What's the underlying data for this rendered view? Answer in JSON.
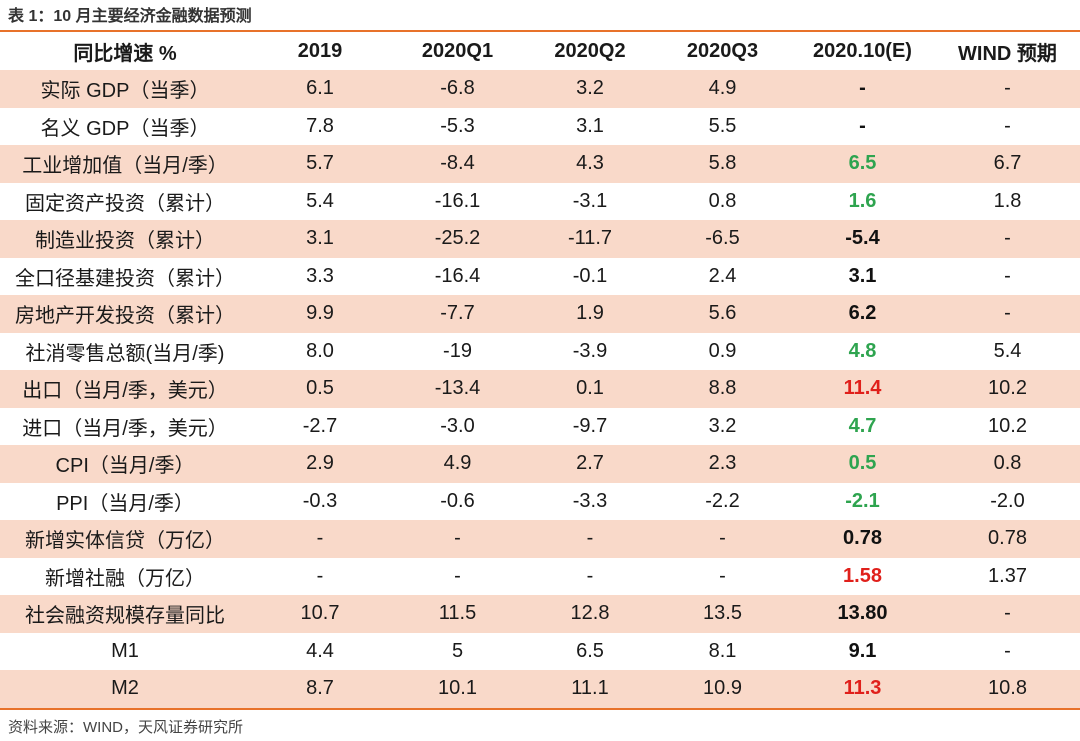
{
  "caption": "表 1：10 月主要经济金融数据预测",
  "headers": [
    "同比增速 %",
    "2019",
    "2020Q1",
    "2020Q2",
    "2020Q3",
    "2020.10(E)",
    "WIND 预期"
  ],
  "rows": [
    {
      "label": "实际 GDP（当季）",
      "values": [
        "6.1",
        "-6.8",
        "3.2",
        "4.9"
      ],
      "estimate": "-",
      "estimate_color": "black",
      "wind": "-"
    },
    {
      "label": "名义 GDP（当季）",
      "values": [
        "7.8",
        "-5.3",
        "3.1",
        "5.5"
      ],
      "estimate": "-",
      "estimate_color": "black",
      "wind": "-"
    },
    {
      "label": "工业增加值（当月/季）",
      "values": [
        "5.7",
        "-8.4",
        "4.3",
        "5.8"
      ],
      "estimate": "6.5",
      "estimate_color": "green",
      "wind": "6.7"
    },
    {
      "label": "固定资产投资（累计）",
      "values": [
        "5.4",
        "-16.1",
        "-3.1",
        "0.8"
      ],
      "estimate": "1.6",
      "estimate_color": "green",
      "wind": "1.8"
    },
    {
      "label": "制造业投资（累计）",
      "values": [
        "3.1",
        "-25.2",
        "-11.7",
        "-6.5"
      ],
      "estimate": "-5.4",
      "estimate_color": "black",
      "wind": "-"
    },
    {
      "label": "全口径基建投资（累计）",
      "values": [
        "3.3",
        "-16.4",
        "-0.1",
        "2.4"
      ],
      "estimate": "3.1",
      "estimate_color": "black",
      "wind": "-"
    },
    {
      "label": "房地产开发投资（累计）",
      "values": [
        "9.9",
        "-7.7",
        "1.9",
        "5.6"
      ],
      "estimate": "6.2",
      "estimate_color": "black",
      "wind": "-"
    },
    {
      "label": "社消零售总额(当月/季)",
      "values": [
        "8.0",
        "-19",
        "-3.9",
        "0.9"
      ],
      "estimate": "4.8",
      "estimate_color": "green",
      "wind": "5.4"
    },
    {
      "label": "出口（当月/季，美元）",
      "values": [
        "0.5",
        "-13.4",
        "0.1",
        "8.8"
      ],
      "estimate": "11.4",
      "estimate_color": "red",
      "wind": "10.2"
    },
    {
      "label": "进口（当月/季，美元）",
      "values": [
        "-2.7",
        "-3.0",
        "-9.7",
        "3.2"
      ],
      "estimate": "4.7",
      "estimate_color": "green",
      "wind": "10.2"
    },
    {
      "label": "CPI（当月/季）",
      "values": [
        "2.9",
        "4.9",
        "2.7",
        "2.3"
      ],
      "estimate": "0.5",
      "estimate_color": "green",
      "wind": "0.8"
    },
    {
      "label": "PPI（当月/季）",
      "values": [
        "-0.3",
        "-0.6",
        "-3.3",
        "-2.2"
      ],
      "estimate": "-2.1",
      "estimate_color": "green",
      "wind": "-2.0"
    },
    {
      "label": "新增实体信贷（万亿）",
      "values": [
        "-",
        "-",
        "-",
        "-"
      ],
      "estimate": "0.78",
      "estimate_color": "black",
      "wind": "0.78"
    },
    {
      "label": "新增社融（万亿）",
      "values": [
        "-",
        "-",
        "-",
        "-"
      ],
      "estimate": "1.58",
      "estimate_color": "red",
      "wind": "1.37"
    },
    {
      "label": "社会融资规模存量同比",
      "values": [
        "10.7",
        "11.5",
        "12.8",
        "13.5"
      ],
      "estimate": "13.80",
      "estimate_color": "black",
      "wind": "-"
    },
    {
      "label": "M1",
      "values": [
        "4.4",
        "5",
        "6.5",
        "8.1"
      ],
      "estimate": "9.1",
      "estimate_color": "black",
      "wind": "-"
    },
    {
      "label": "M2",
      "values": [
        "8.7",
        "10.1",
        "11.1",
        "10.9"
      ],
      "estimate": "11.3",
      "estimate_color": "red",
      "wind": "10.8"
    }
  ],
  "source": "资料来源：WIND，天风证券研究所"
}
